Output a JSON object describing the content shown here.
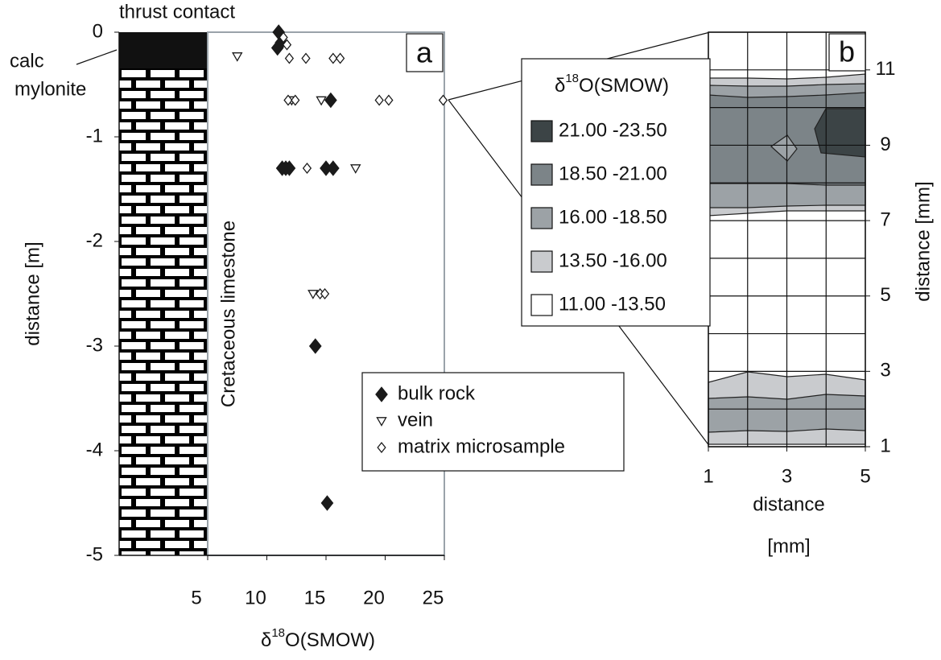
{
  "chart_data": [
    {
      "type": "scatter",
      "x_label": {
        "symbol": "δ",
        "superscript": "18",
        "text": "O(SMOW)"
      },
      "y_label": "distance [m]",
      "annotations": {
        "top": "thrust contact",
        "left_1": "calc",
        "left_2": "mylonite",
        "column": "Cretaceous limestone",
        "panel": "a"
      },
      "xlim": [
        5,
        25
      ],
      "xticks": [
        5,
        10,
        15,
        20,
        25
      ],
      "ylim": [
        -5,
        0
      ],
      "yticks": [
        0,
        -1,
        -2,
        -3,
        -4,
        -5
      ],
      "series": [
        {
          "name": "bulk rock",
          "marker": "diamond-filled",
          "color": "#1a1a1a",
          "x": [
            11.0,
            11.2,
            10.9,
            15.4,
            11.3,
            11.6,
            11.9,
            15.0,
            15.6,
            14.1,
            15.1
          ],
          "y": [
            0,
            -0.1,
            -0.15,
            -0.65,
            -1.3,
            -1.3,
            -1.3,
            -1.3,
            -1.3,
            -3.0,
            -4.5
          ]
        },
        {
          "name": "vein",
          "marker": "triangle-down-open",
          "color": "#1a1a1a",
          "x": [
            7.5,
            12.1,
            14.6,
            17.5,
            13.9
          ],
          "y": [
            -0.23,
            -0.65,
            -0.65,
            -1.3,
            -2.5
          ]
        },
        {
          "name": "matrix microsample",
          "marker": "diamond-open",
          "color": "#1a1a1a",
          "x": [
            11.4,
            11.7,
            11.9,
            13.3,
            15.6,
            16.2,
            11.8,
            12.4,
            19.5,
            20.3,
            24.9,
            13.4,
            14.5,
            14.9
          ],
          "y": [
            -0.05,
            -0.12,
            -0.25,
            -0.25,
            -0.25,
            -0.25,
            -0.65,
            -0.65,
            -0.65,
            -0.65,
            -0.65,
            -1.3,
            -2.5,
            -2.5
          ]
        }
      ]
    },
    {
      "type": "contour",
      "x_label": "distance",
      "x_unit": "[mm]",
      "y_label": "distance [mm]",
      "panel": "b",
      "xlim": [
        1,
        5
      ],
      "xticks": [
        1,
        3,
        5
      ],
      "ylim": [
        1,
        12
      ],
      "yticks": [
        1,
        3,
        5,
        7,
        9,
        11
      ],
      "grid_step": 1,
      "legend_title": {
        "symbol": "δ",
        "superscript": "18",
        "text": "O(SMOW)"
      },
      "levels": [
        {
          "label": "21.00 -23.50",
          "color": "#3c4446"
        },
        {
          "label": "18.50 -21.00",
          "color": "#7c8488"
        },
        {
          "label": "16.00 -18.50",
          "color": "#9ca2a6"
        },
        {
          "label": "13.50 -16.00",
          "color": "#c9cbce"
        },
        {
          "label": "11.00 -13.50",
          "color": "#ffffff"
        }
      ]
    }
  ]
}
